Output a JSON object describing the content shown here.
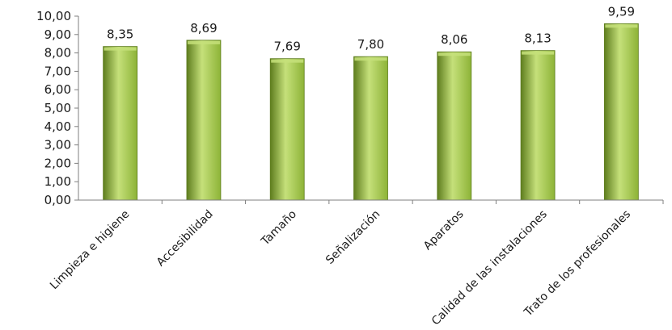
{
  "chart_data": {
    "type": "bar",
    "categories": [
      "Limpieza e higiene",
      "Accesibilidad",
      "Tamaño",
      "Señalización",
      "Aparatos",
      "Calidad de las instalaciones",
      "Trato de los profesionales"
    ],
    "values": [
      8.35,
      8.69,
      7.69,
      7.8,
      8.06,
      8.13,
      9.59
    ],
    "data_labels": [
      "8,35",
      "8,69",
      "7,69",
      "7,80",
      "8,06",
      "8,13",
      "9,59"
    ],
    "y_ticks": [
      "0,00",
      "1,00",
      "2,00",
      "3,00",
      "4,00",
      "5,00",
      "6,00",
      "7,00",
      "8,00",
      "9,00",
      "10,00"
    ],
    "ylim": [
      0,
      10
    ],
    "grid": false,
    "legend": "none",
    "bar_color": "#8DB337",
    "bar_color_light": "#C5E07A",
    "bar_color_dark": "#5E7D1E",
    "axis_color": "#7F7F7F"
  }
}
